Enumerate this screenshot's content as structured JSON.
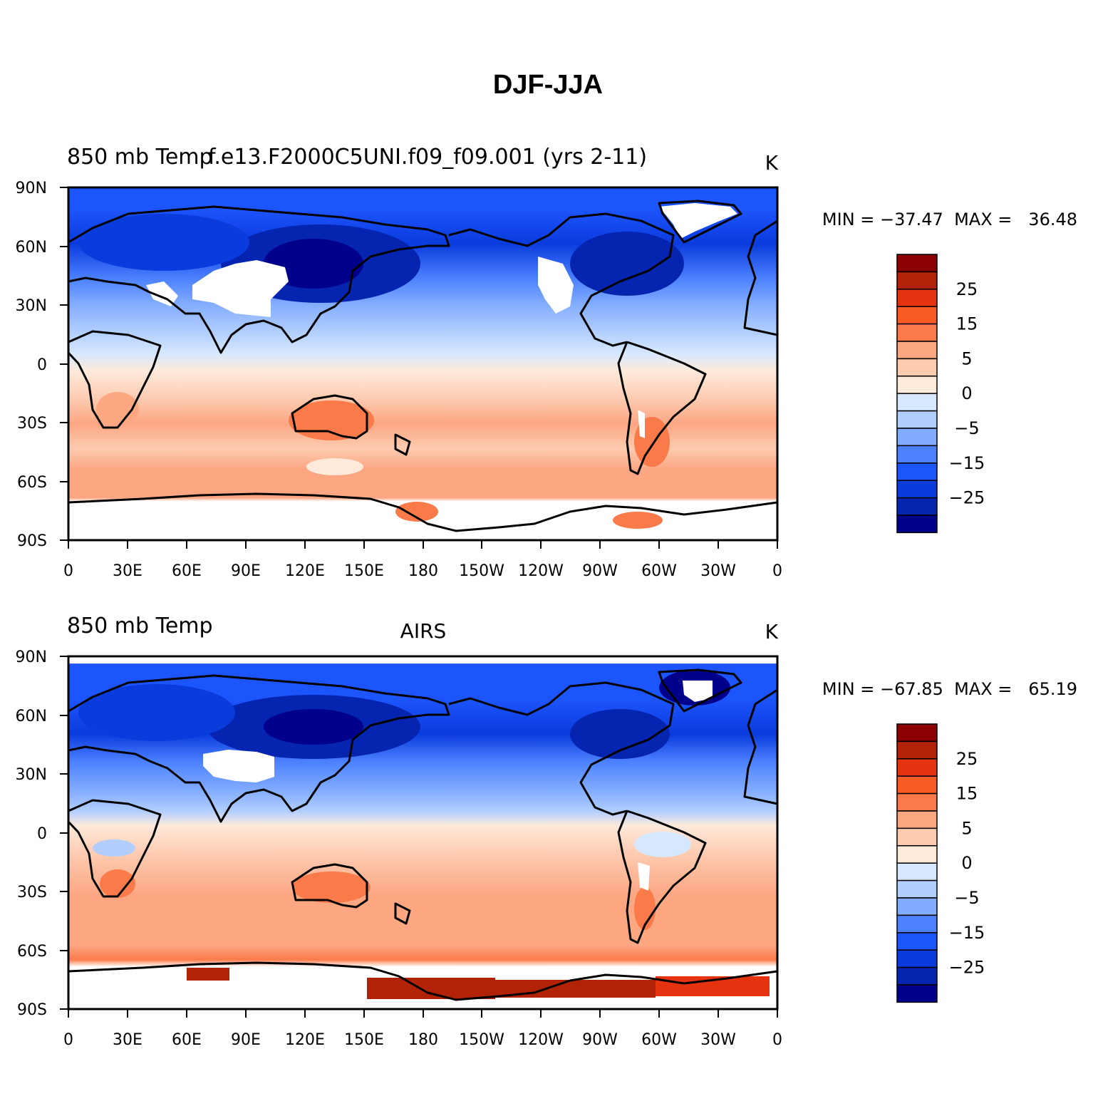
{
  "figure": {
    "title": "DJF-JJA"
  },
  "panels": [
    {
      "left_label": "850 mb Temp",
      "center_label": "f.e13.F2000C5UNI.f09_f09.001 (yrs 2-11)",
      "units": "K",
      "min_max_text": "MIN = −37.47  MAX =   36.48",
      "min": -37.47,
      "max": 36.48
    },
    {
      "left_label": "850 mb Temp",
      "center_label": "AIRS",
      "units": "K",
      "min_max_text": "MIN = −67.85  MAX =   65.19",
      "min": -67.85,
      "max": 65.19
    }
  ],
  "axes": {
    "x_ticks": [
      "0",
      "30E",
      "60E",
      "90E",
      "120E",
      "150E",
      "180",
      "150W",
      "120W",
      "90W",
      "60W",
      "30W",
      "0"
    ],
    "y_ticks": [
      "90N",
      "60N",
      "30N",
      "0",
      "30S",
      "60S",
      "90S"
    ]
  },
  "colorbar": {
    "labels": [
      "25",
      "15",
      "5",
      "0",
      "−5",
      "−15",
      "−25"
    ],
    "colors": [
      "#8b0000",
      "#b22206",
      "#e5330f",
      "#fa5a25",
      "#fb7a4a",
      "#fca682",
      "#fdcbb0",
      "#feeadb",
      "#d6e8ff",
      "#b2ceff",
      "#82acff",
      "#4d82ff",
      "#1d55fd",
      "#0a3bdd",
      "#0524b0",
      "#00008b"
    ]
  },
  "colors": {
    "ocean_warm": "#fdcbb0",
    "land_outline": "#000000",
    "missing": "#ffffff"
  }
}
